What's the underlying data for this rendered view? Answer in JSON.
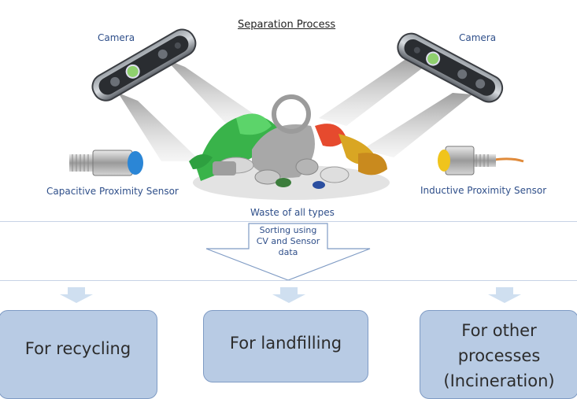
{
  "title": "Separation Process",
  "labels": {
    "camera_left": "Camera",
    "camera_right": "Camera",
    "capacitive_sensor": "Capacitive Proximity Sensor",
    "inductive_sensor": "Inductive Proximity Sensor",
    "waste": "Waste of all types"
  },
  "sorting": {
    "line1": "Sorting using",
    "line2": "CV and Sensor",
    "line3": "data"
  },
  "outputs": {
    "recycling": "For recycling",
    "landfilling": "For landfilling",
    "other_line1": "For other",
    "other_line2": "processes",
    "other_line3": "(Incineration)"
  },
  "colors": {
    "label_text": "#2f4f8a",
    "box_fill": "#b8cbe4",
    "box_border": "#7f9bc4",
    "arrow_fill": "#cfdff0",
    "sensor_blue": "#2b86d6",
    "sensor_yellow": "#f0c41c"
  }
}
